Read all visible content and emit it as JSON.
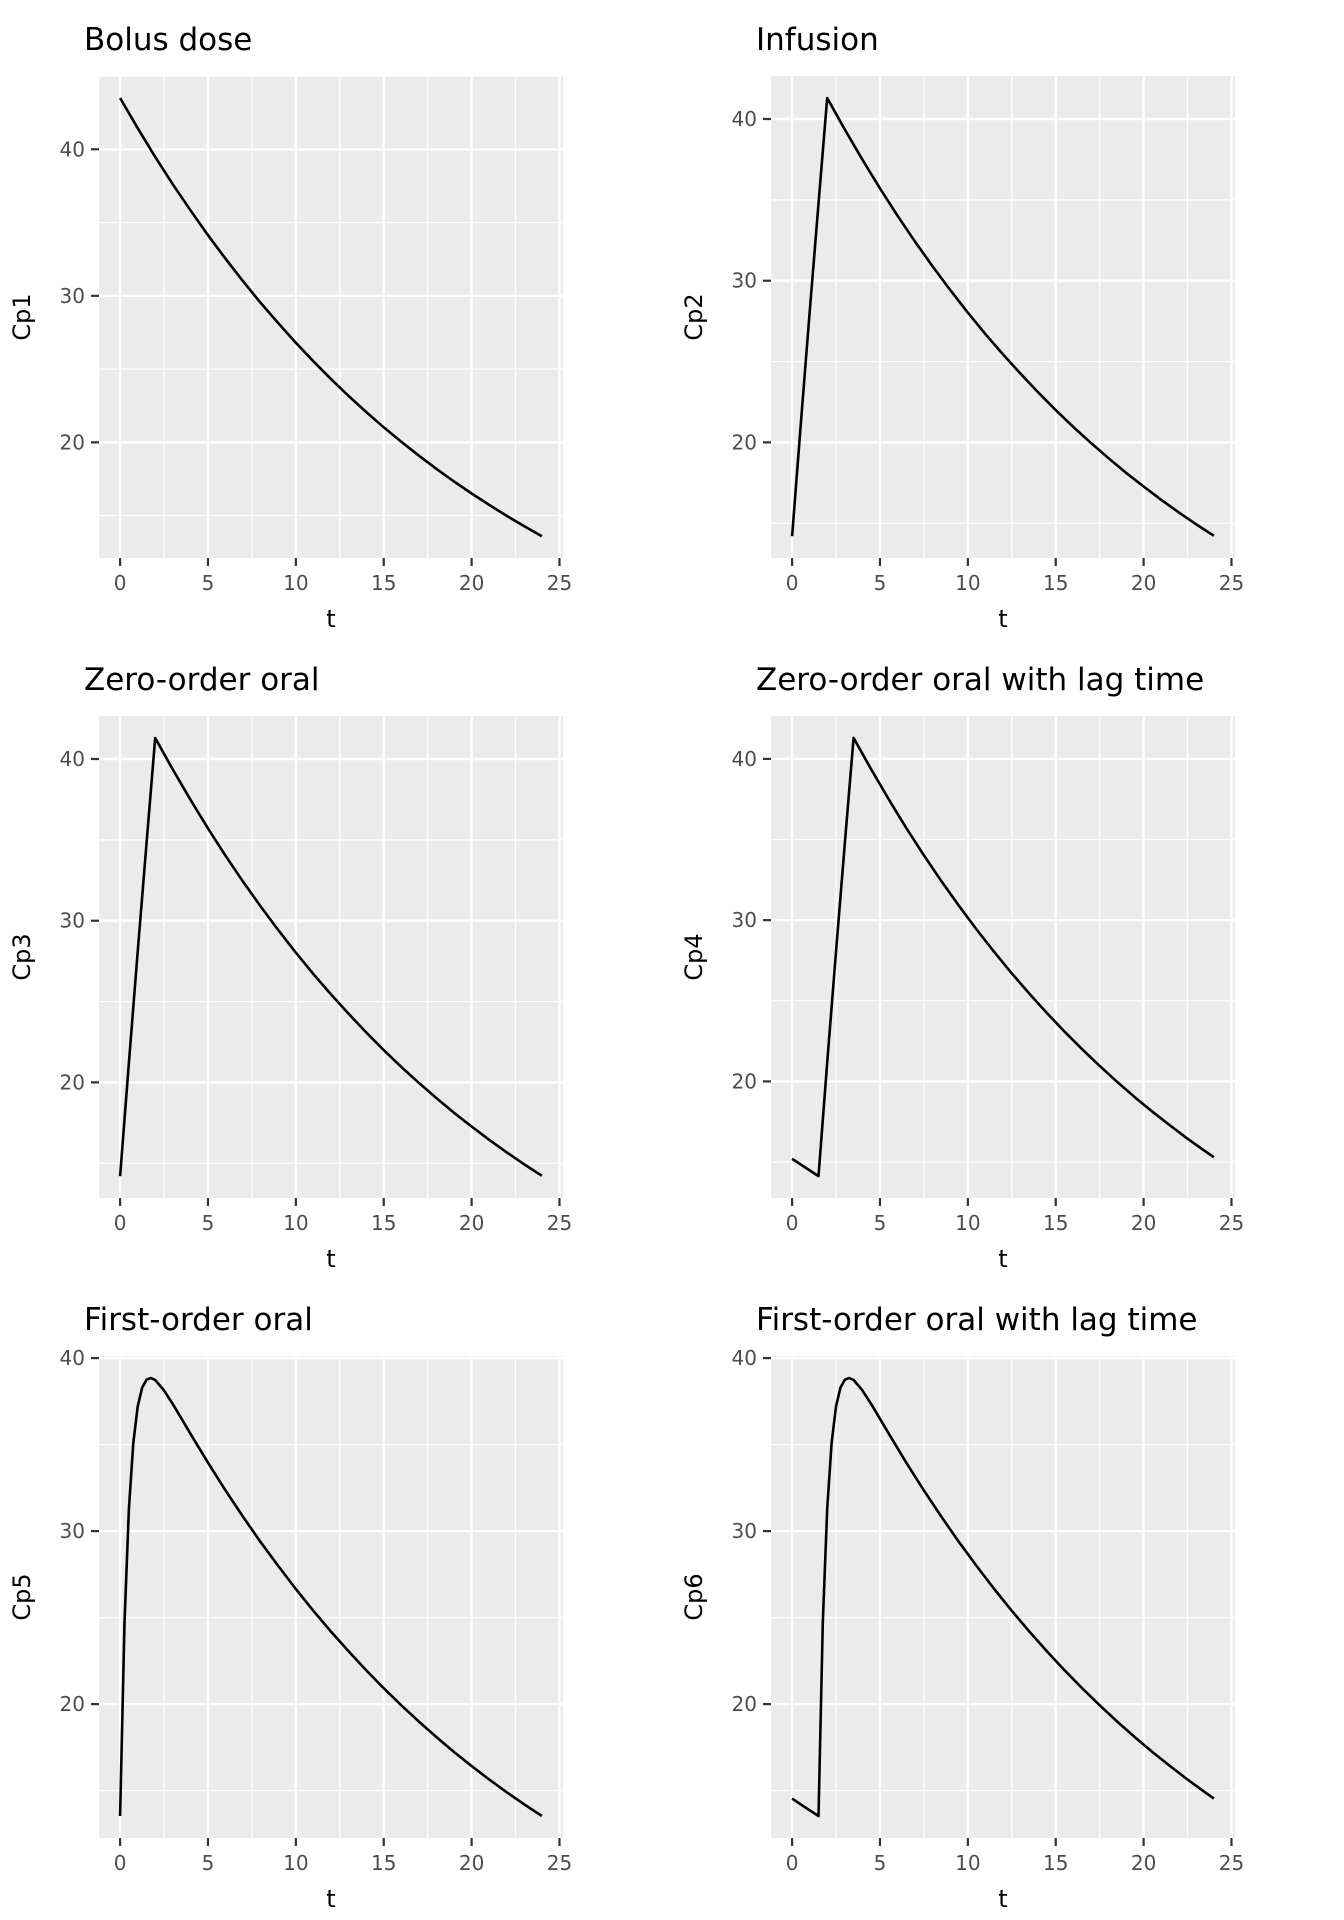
{
  "style": {
    "page_bg": "#FFFFFF",
    "panel_bg": "#EBEBEB",
    "grid_major_color": "#FFFFFF",
    "grid_minor_color": "#FFFFFF",
    "curve_color": "#000000",
    "tick_mark_color": "#333333",
    "tick_label_color": "#4D4D4D",
    "text_color": "#000000"
  },
  "axes_common": {
    "x_domain": [
      -1.2,
      25.2
    ],
    "x_ticks": [
      0,
      5,
      10,
      15,
      20,
      25
    ],
    "x_minor": [
      2.5,
      7.5,
      12.5,
      17.5,
      22.5
    ],
    "y_ticks": [
      20,
      30,
      40
    ],
    "y_minor": [
      15,
      25,
      35,
      45
    ],
    "grid": true,
    "legend": "none"
  },
  "chart_data": [
    {
      "type": "line",
      "id": "bolus-dose",
      "title": "Bolus dose",
      "xlabel": "t",
      "ylabel": "Cp1",
      "y_domain": [
        12.11,
        45.0
      ],
      "x": [
        0,
        1,
        2,
        3,
        4,
        5,
        6,
        7,
        8,
        9,
        10,
        11,
        12,
        13,
        14,
        15,
        16,
        17,
        18,
        19,
        20,
        21,
        22,
        23,
        24
      ],
      "y": [
        43.5,
        41.44,
        39.48,
        37.61,
        35.84,
        34.14,
        32.53,
        30.99,
        29.52,
        28.13,
        26.8,
        25.53,
        24.32,
        23.17,
        22.07,
        21.03,
        20.04,
        19.09,
        18.19,
        17.33,
        16.51,
        15.73,
        14.98,
        14.27,
        13.6
      ]
    },
    {
      "type": "line",
      "id": "infusion",
      "title": "Infusion",
      "xlabel": "t",
      "ylabel": "Cp2",
      "y_domain": [
        12.85,
        42.66
      ],
      "x": [
        0,
        0.5,
        1,
        1.5,
        2,
        3,
        4,
        5,
        6,
        7,
        8,
        9,
        10,
        11,
        12,
        13,
        14,
        15,
        16,
        17,
        18,
        19,
        20,
        21,
        22,
        23,
        24
      ],
      "y": [
        14.2,
        21.22,
        28.08,
        34.77,
        41.3,
        39.35,
        37.49,
        35.71,
        34.02,
        32.41,
        30.88,
        29.42,
        28.03,
        26.7,
        25.44,
        24.24,
        23.09,
        22.0,
        20.96,
        19.97,
        19.02,
        18.12,
        17.27,
        16.45,
        15.67,
        14.93,
        14.22
      ]
    },
    {
      "type": "line",
      "id": "zero-order-oral",
      "title": "Zero-order oral",
      "xlabel": "t",
      "ylabel": "Cp3",
      "y_domain": [
        12.85,
        42.66
      ],
      "x": [
        0,
        0.5,
        1,
        1.5,
        2,
        3,
        4,
        5,
        6,
        7,
        8,
        9,
        10,
        11,
        12,
        13,
        14,
        15,
        16,
        17,
        18,
        19,
        20,
        21,
        22,
        23,
        24
      ],
      "y": [
        14.2,
        21.22,
        28.08,
        34.77,
        41.3,
        39.35,
        37.49,
        35.71,
        34.02,
        32.41,
        30.88,
        29.42,
        28.03,
        26.7,
        25.44,
        24.24,
        23.09,
        22.0,
        20.96,
        19.97,
        19.02,
        18.12,
        17.27,
        16.45,
        15.67,
        14.93,
        14.22
      ]
    },
    {
      "type": "line",
      "id": "zero-order-oral-lag",
      "title": "Zero-order oral with lag time",
      "xlabel": "t",
      "ylabel": "Cp4",
      "y_domain": [
        12.77,
        42.66
      ],
      "x": [
        0,
        0.75,
        1.5,
        2,
        2.5,
        3,
        3.5,
        4.5,
        5.5,
        6.5,
        7.5,
        8.5,
        9.5,
        10.5,
        11.5,
        12.5,
        13.5,
        14.5,
        15.5,
        16.5,
        17.5,
        18.5,
        19.5,
        20.5,
        21.5,
        22.5,
        23.5,
        24
      ],
      "y": [
        15.2,
        14.66,
        14.13,
        21.17,
        28.04,
        34.75,
        41.3,
        39.35,
        37.49,
        35.71,
        34.02,
        32.41,
        30.88,
        29.42,
        28.03,
        26.7,
        25.44,
        24.24,
        23.09,
        22.0,
        20.96,
        19.97,
        19.02,
        18.12,
        17.27,
        16.45,
        15.67,
        15.3
      ]
    },
    {
      "type": "line",
      "id": "first-order-oral",
      "title": "First-order oral",
      "xlabel": "t",
      "ylabel": "Cp5",
      "y_domain": [
        12.26,
        40.12
      ],
      "x": [
        0,
        0.25,
        0.5,
        0.75,
        1,
        1.25,
        1.5,
        1.75,
        2,
        2.5,
        3,
        3.5,
        4,
        5,
        6,
        7,
        8,
        9,
        10,
        11,
        12,
        13,
        14,
        15,
        16,
        17,
        18,
        19,
        20,
        21,
        22,
        23,
        24
      ],
      "y": [
        13.53,
        24.71,
        31.29,
        35.09,
        37.2,
        38.28,
        38.75,
        38.85,
        38.73,
        38.13,
        37.34,
        36.49,
        35.63,
        33.95,
        32.35,
        30.82,
        29.36,
        27.98,
        26.65,
        25.39,
        24.19,
        23.05,
        21.96,
        20.92,
        19.93,
        18.99,
        18.09,
        17.23,
        16.42,
        15.64,
        14.9,
        14.2,
        13.53
      ]
    },
    {
      "type": "line",
      "id": "first-order-oral-lag",
      "title": "First-order oral with lag time",
      "xlabel": "t",
      "ylabel": "Cp6",
      "y_domain": [
        12.26,
        40.12
      ],
      "x": [
        0,
        0.75,
        1.5,
        1.75,
        2,
        2.25,
        2.5,
        2.75,
        3,
        3.25,
        3.5,
        4,
        4.5,
        5,
        5.5,
        6.5,
        7.5,
        8.5,
        9.5,
        10.5,
        11.5,
        12.5,
        13.5,
        14.5,
        15.5,
        16.5,
        17.5,
        18.5,
        19.5,
        20.5,
        21.5,
        22.5,
        23.5,
        24
      ],
      "y": [
        14.54,
        14.03,
        13.53,
        24.71,
        31.29,
        35.09,
        37.2,
        38.28,
        38.75,
        38.85,
        38.73,
        38.13,
        37.34,
        36.49,
        35.63,
        33.95,
        32.35,
        30.82,
        29.36,
        27.98,
        26.65,
        25.39,
        24.19,
        23.05,
        21.96,
        20.92,
        19.93,
        18.99,
        18.09,
        17.23,
        16.42,
        15.64,
        14.9,
        14.54
      ]
    }
  ]
}
